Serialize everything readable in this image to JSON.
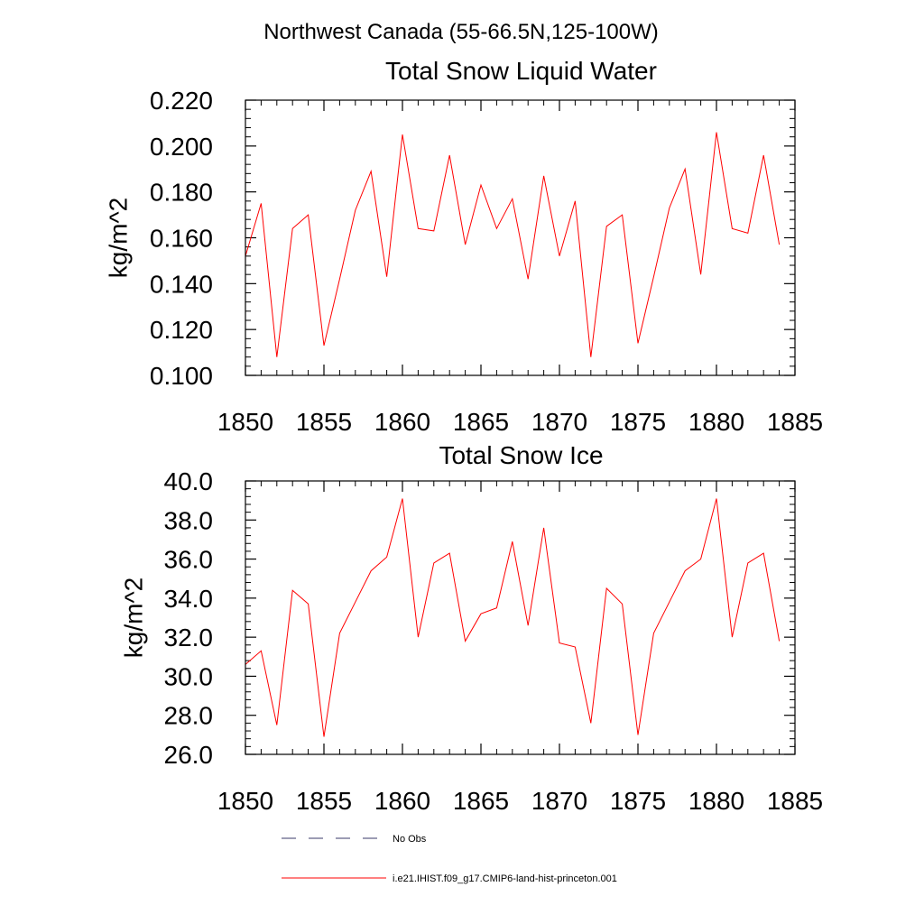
{
  "figure_title": "Northwest Canada (55-66.5N,125-100W)",
  "legend": {
    "entries": [
      {
        "label": "No Obs",
        "color": "#3a3a6a",
        "style": "dashed"
      },
      {
        "label": "i.e21.IHIST.f09_g17.CMIP6-land-hist-princeton.001",
        "color": "#ff0000",
        "style": "solid"
      }
    ]
  },
  "chart_data": [
    {
      "type": "line",
      "title": "Total Snow Liquid Water",
      "xlabel": "",
      "ylabel": "kg/m^2",
      "xlim": [
        1850,
        1885
      ],
      "ylim": [
        0.1,
        0.22
      ],
      "x_ticks": [
        "1850",
        "1855",
        "1860",
        "1865",
        "1870",
        "1875",
        "1880",
        "1885"
      ],
      "y_ticks": [
        "0.100",
        "0.120",
        "0.140",
        "0.160",
        "0.180",
        "0.200",
        "0.220"
      ],
      "grid": false,
      "series": [
        {
          "name": "i.e21.IHIST.f09_g17.CMIP6-land-hist-princeton.001",
          "color": "#ff0000",
          "x": [
            1850,
            1851,
            1852,
            1853,
            1854,
            1855,
            1856,
            1857,
            1858,
            1859,
            1860,
            1861,
            1862,
            1863,
            1864,
            1865,
            1866,
            1867,
            1868,
            1869,
            1870,
            1871,
            1872,
            1873,
            1874,
            1875,
            1876,
            1877,
            1878,
            1879,
            1880,
            1881,
            1882,
            1883,
            1884
          ],
          "y": [
            0.152,
            0.175,
            0.108,
            0.164,
            0.17,
            0.113,
            0.142,
            0.172,
            0.189,
            0.143,
            0.205,
            0.164,
            0.163,
            0.196,
            0.157,
            0.183,
            0.164,
            0.177,
            0.142,
            0.187,
            0.152,
            0.176,
            0.108,
            0.165,
            0.17,
            0.114,
            0.143,
            0.173,
            0.19,
            0.144,
            0.206,
            0.164,
            0.162,
            0.196,
            0.157
          ]
        }
      ]
    },
    {
      "type": "line",
      "title": "Total Snow Ice",
      "xlabel": "",
      "ylabel": "kg/m^2",
      "xlim": [
        1850,
        1885
      ],
      "ylim": [
        26.0,
        40.0
      ],
      "x_ticks": [
        "1850",
        "1855",
        "1860",
        "1865",
        "1870",
        "1875",
        "1880",
        "1885"
      ],
      "y_ticks": [
        "26.0",
        "28.0",
        "30.0",
        "32.0",
        "34.0",
        "36.0",
        "38.0",
        "40.0"
      ],
      "grid": false,
      "series": [
        {
          "name": "i.e21.IHIST.f09_g17.CMIP6-land-hist-princeton.001",
          "color": "#ff0000",
          "x": [
            1850,
            1851,
            1852,
            1853,
            1854,
            1855,
            1856,
            1857,
            1858,
            1859,
            1860,
            1861,
            1862,
            1863,
            1864,
            1865,
            1866,
            1867,
            1868,
            1869,
            1870,
            1871,
            1872,
            1873,
            1874,
            1875,
            1876,
            1877,
            1878,
            1879,
            1880,
            1881,
            1882,
            1883,
            1884
          ],
          "y": [
            30.6,
            31.3,
            27.5,
            34.4,
            33.7,
            26.9,
            32.2,
            33.8,
            35.4,
            36.1,
            39.1,
            32.0,
            35.8,
            36.3,
            31.8,
            33.2,
            33.5,
            36.9,
            32.6,
            37.6,
            31.7,
            31.5,
            27.6,
            34.5,
            33.7,
            27.0,
            32.2,
            33.8,
            35.4,
            36.0,
            39.1,
            32.0,
            35.8,
            36.3,
            31.8
          ]
        }
      ]
    }
  ]
}
